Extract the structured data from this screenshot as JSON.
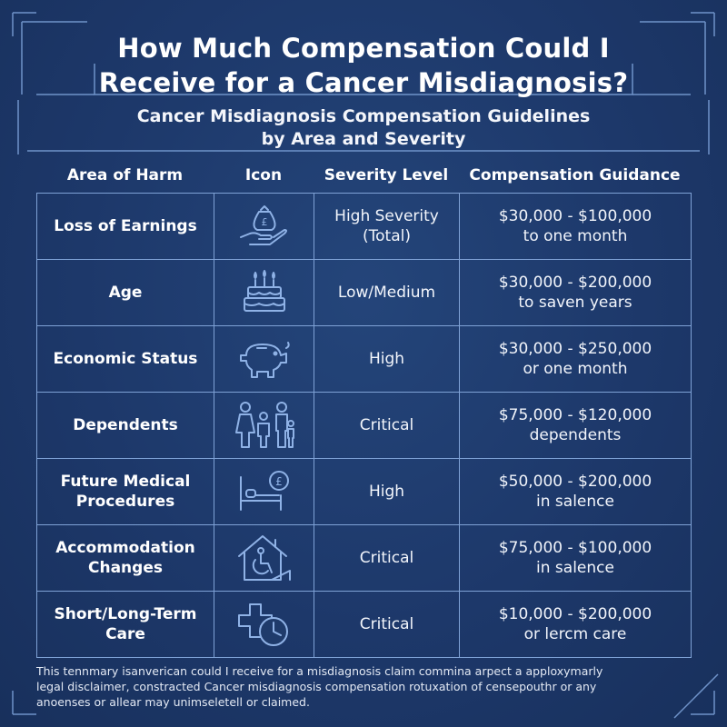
{
  "header": {
    "title_line1": "How Much Compensation Could I",
    "title_line2": "Receive for a Cancer Misdiagnosis?",
    "subtitle_line1": "Cancer Misdiagnosis Compensation Guidelines",
    "subtitle_line2": "by Area and Severity"
  },
  "table": {
    "headers": [
      "Area of Harm",
      "Icon",
      "Severity Level",
      "Compensation Guidance"
    ],
    "rows": [
      {
        "area": [
          "Loss of Earnings"
        ],
        "icon": "hand-money-bag-icon",
        "severity": [
          "High Severity",
          "(Total)"
        ],
        "comp": [
          "$30,000 - $100,000",
          "to one month"
        ]
      },
      {
        "area": [
          "Age"
        ],
        "icon": "birthday-cake-icon",
        "severity": [
          "Low/Medium"
        ],
        "comp": [
          "$30,000 - $200,000",
          "to saven years"
        ]
      },
      {
        "area": [
          "Economic Status"
        ],
        "icon": "piggy-bank-icon",
        "severity": [
          "High"
        ],
        "comp": [
          "$30,000 - $250,000",
          "or one month"
        ]
      },
      {
        "area": [
          "Dependents"
        ],
        "icon": "family-icon",
        "severity": [
          "Critical"
        ],
        "comp": [
          "$75,000 - $120,000",
          "dependents"
        ]
      },
      {
        "area": [
          "Future Medical",
          "Procedures"
        ],
        "icon": "hospital-bed-icon",
        "severity": [
          "High"
        ],
        "comp": [
          "$50,000 - $200,000",
          "in salence"
        ]
      },
      {
        "area": [
          "Accommodation",
          "Changes"
        ],
        "icon": "accessible-home-icon",
        "severity": [
          "Critical"
        ],
        "comp": [
          "$75,000 - $100,000",
          "in salence"
        ]
      },
      {
        "area": [
          "Short/Long-Term",
          "Care"
        ],
        "icon": "medical-cross-clock-icon",
        "severity": [
          "Critical"
        ],
        "comp": [
          "$10,000 - $200,000",
          "or lercm care"
        ]
      }
    ]
  },
  "disclaimer": {
    "line1": "This tennmary isanverican could I receive for a misdiagnosis claim commina arpect a apploxymarly",
    "line2": "legal disclaimer, constracted Cancer misdiagnosis compensation rotuxation of censepouthr or any",
    "line3": "anoenses or allear may unimseletell or claimed."
  },
  "colors": {
    "background": "#1f3b6b",
    "grid_line": "#7fa2d6",
    "text": "#ffffff"
  }
}
